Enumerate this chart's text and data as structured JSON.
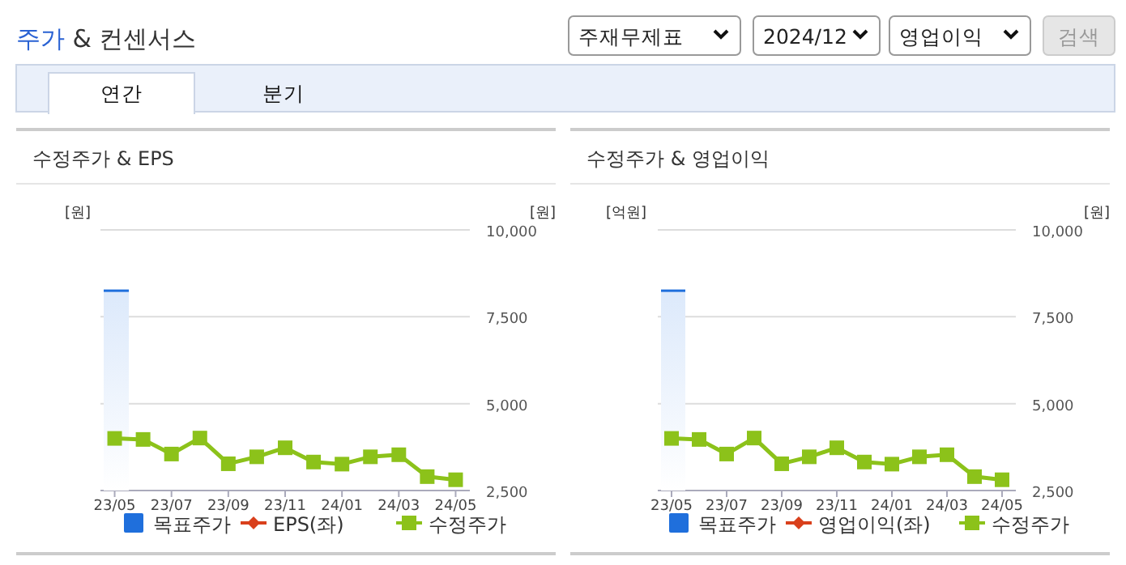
{
  "chart_data": [
    {
      "type": "other",
      "title": "주가 & 컨센서스",
      "annotations": [
        "주재무제표",
        "2024/12",
        "영업이익",
        "검색",
        "연간",
        "분기"
      ]
    },
    {
      "type": "line",
      "title": "수정주가 & EPS",
      "ylabel": "[원]",
      "y2label": "[원]",
      "categories": [
        "23/05",
        null,
        "23/07",
        null,
        "23/09",
        null,
        "23/11",
        null,
        "24/01",
        null,
        "24/03",
        null,
        "24/05"
      ],
      "y2lim": [
        2500,
        10000
      ],
      "y2ticks": [
        {
          "value": 2500,
          "label": "2,500"
        },
        {
          "value": 5000,
          "label": "5,000"
        },
        {
          "value": 7500,
          "label": "7,500"
        },
        {
          "value": 10000,
          "label": "10,000"
        }
      ],
      "grid": "y",
      "legend": "bottom",
      "series": [
        {
          "name": "목표주가",
          "type": "bar",
          "axis": "y2",
          "color": "#1f6fdc",
          "values": [
            8250,
            null,
            null,
            null,
            null,
            null,
            null,
            null,
            null,
            null,
            null,
            null,
            null
          ]
        },
        {
          "name": "EPS(좌)",
          "type": "line",
          "color": "#d9401c",
          "marker": "diamond",
          "values": [
            null,
            null,
            null,
            null,
            null,
            null,
            null,
            null,
            null,
            null,
            null,
            null,
            null
          ]
        },
        {
          "name": "수정주가",
          "type": "line",
          "axis": "y2",
          "color": "#8cc21a",
          "marker": "square",
          "values": [
            4000,
            3970,
            3550,
            4010,
            3270,
            3470,
            3730,
            3320,
            3260,
            3470,
            3530,
            2900,
            2810
          ]
        }
      ]
    },
    {
      "type": "line",
      "title": "수정주가 & 영업이익",
      "ylabel": "[억원]",
      "y2label": "[원]",
      "categories": [
        "23/05",
        null,
        "23/07",
        null,
        "23/09",
        null,
        "23/11",
        null,
        "24/01",
        null,
        "24/03",
        null,
        "24/05"
      ],
      "y2lim": [
        2500,
        10000
      ],
      "y2ticks": [
        {
          "value": 2500,
          "label": "2,500"
        },
        {
          "value": 5000,
          "label": "5,000"
        },
        {
          "value": 7500,
          "label": "7,500"
        },
        {
          "value": 10000,
          "label": "10,000"
        }
      ],
      "grid": "y",
      "legend": "bottom",
      "series": [
        {
          "name": "목표주가",
          "type": "bar",
          "axis": "y2",
          "color": "#1f6fdc",
          "values": [
            8250,
            null,
            null,
            null,
            null,
            null,
            null,
            null,
            null,
            null,
            null,
            null,
            null
          ]
        },
        {
          "name": "영업이익(좌)",
          "type": "line",
          "color": "#d9401c",
          "marker": "diamond",
          "values": [
            null,
            null,
            null,
            null,
            null,
            null,
            null,
            null,
            null,
            null,
            null,
            null,
            null
          ]
        },
        {
          "name": "수정주가",
          "type": "line",
          "axis": "y2",
          "color": "#8cc21a",
          "marker": "square",
          "values": [
            4000,
            3970,
            3550,
            4010,
            3270,
            3470,
            3730,
            3320,
            3260,
            3470,
            3530,
            2900,
            2810
          ]
        }
      ]
    }
  ]
}
